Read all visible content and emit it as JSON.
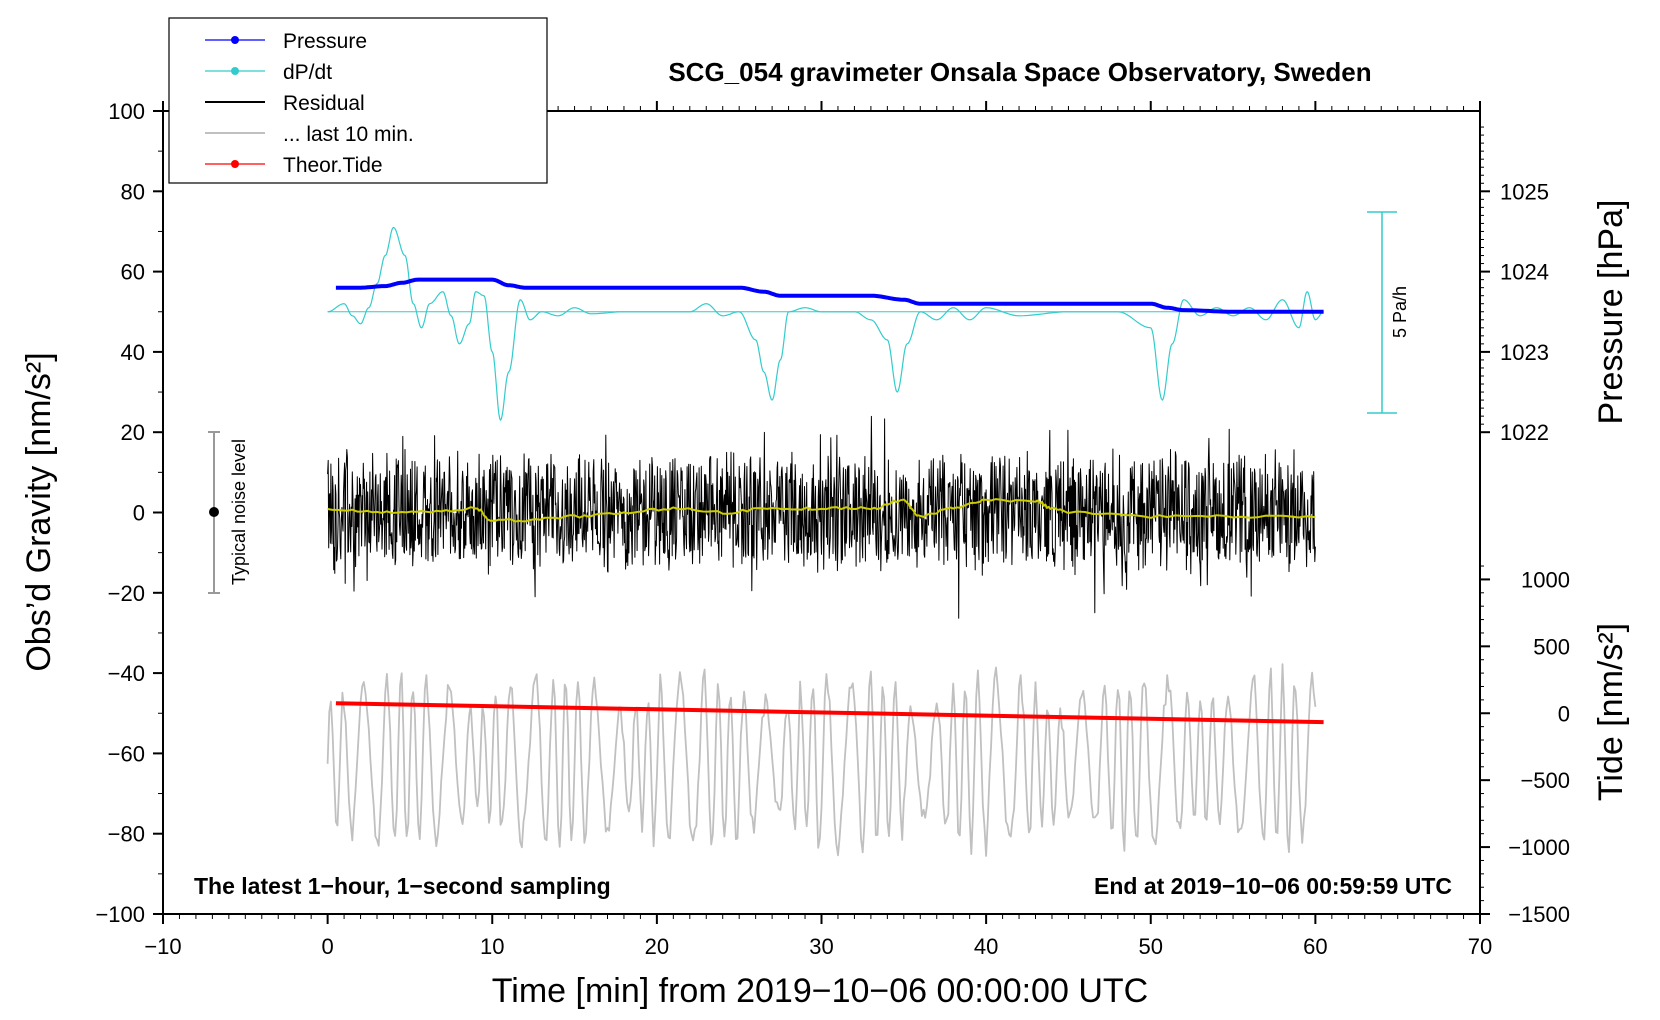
{
  "chart_data": {
    "type": "line",
    "title": "SCG_054 gravimeter Onsala Space Observatory, Sweden",
    "xlabel": "Time [min] from 2019−10−06 00:00:00 UTC",
    "ylabel": "Obs’d Gravity [nm/s²]",
    "ylabel_right_top": "Pressure [hPa]",
    "ylabel_right_bottom": "Tide [nm/s²]",
    "xlim": [
      -10,
      70
    ],
    "ylim": [
      -100,
      100
    ],
    "x_ticks": [
      "−10",
      "0",
      "10",
      "20",
      "30",
      "40",
      "50",
      "60",
      "70"
    ],
    "x_tick_values": [
      -10,
      0,
      10,
      20,
      30,
      40,
      50,
      60,
      70
    ],
    "y_ticks": [
      "100",
      "80",
      "60",
      "40",
      "20",
      "0",
      "−20",
      "−40",
      "−60",
      "−80",
      "−100"
    ],
    "y_tick_values": [
      100,
      80,
      60,
      40,
      20,
      0,
      -20,
      -40,
      -60,
      -80,
      -100
    ],
    "pressure_axis": {
      "ticks": [
        "1025",
        "1024",
        "1023",
        "1022"
      ],
      "tick_values": [
        1025,
        1024,
        1023,
        1022
      ],
      "note": "1 hPa = 20 nm/s² on left axis; 1022 hPa at left 20"
    },
    "tide_axis": {
      "ticks": [
        "1000",
        "500",
        "0",
        "−500",
        "−1000",
        "−1500"
      ],
      "tick_values": [
        1000,
        500,
        0,
        -500,
        -1000,
        -1500
      ],
      "note": "0 nm/s² at left −50; 500 nm/s² per 16.67 left units"
    },
    "legend": [
      {
        "label": "Pressure",
        "color": "#0000ff",
        "marker": "dot"
      },
      {
        "label": "dP/dt",
        "color": "#33cccc",
        "marker": "dot"
      },
      {
        "label": "Residual",
        "color": "#000000",
        "marker": "none"
      },
      {
        "label": "... last 10 min.",
        "color": "#c0c0c0",
        "marker": "none"
      },
      {
        "label": "Theor.Tide",
        "color": "#ff0000",
        "marker": "dot"
      }
    ],
    "series": [
      {
        "name": "Pressure",
        "color": "#0000ff",
        "x": [
          0.5,
          2,
          3.5,
          4.5,
          5.5,
          7,
          9,
          10,
          11,
          12,
          20,
          25,
          26.5,
          27.5,
          33,
          35,
          36,
          40,
          50,
          51,
          52,
          55,
          60.5
        ],
        "y": [
          56,
          56,
          56.4,
          57.2,
          58,
          58,
          58,
          58,
          56.6,
          56,
          56,
          56,
          55,
          54,
          54,
          53,
          52,
          52,
          52,
          51,
          50.4,
          50,
          50
        ]
      },
      {
        "name": "dP/dt",
        "color": "#33cccc",
        "baseline": 50,
        "x": [
          0,
          1,
          1.5,
          2,
          2.5,
          3,
          3.5,
          4,
          4.7,
          5.2,
          5.7,
          6.2,
          7,
          7.5,
          8,
          8.6,
          9,
          9.5,
          10,
          10.5,
          11,
          11.7,
          12.3,
          13,
          14,
          15,
          16,
          18,
          20,
          22,
          23,
          24,
          25,
          26,
          26.5,
          27,
          27.5,
          28,
          29,
          30,
          32,
          33,
          34,
          34.6,
          35.2,
          36,
          37,
          38,
          39,
          40,
          42,
          45,
          48,
          50,
          50.7,
          51.3,
          52,
          53,
          54,
          55,
          56,
          57,
          58,
          59,
          59.5,
          60,
          60.5
        ],
        "y": [
          50,
          52,
          49,
          47,
          51,
          57,
          64,
          71,
          64,
          52,
          46,
          52,
          55,
          49,
          42,
          47,
          55,
          54,
          40,
          23,
          35,
          53,
          48,
          50,
          49,
          51,
          49.5,
          50,
          50,
          50,
          52,
          49,
          50,
          43,
          35,
          28,
          38,
          50,
          51,
          50,
          50,
          48,
          43,
          30,
          42,
          50,
          48,
          51,
          48,
          51,
          49,
          50,
          50,
          46,
          28,
          42,
          53,
          49,
          51,
          49,
          51,
          48,
          53,
          46,
          55,
          48,
          50
        ]
      },
      {
        "name": "Residual",
        "color": "#000000",
        "x_range": [
          0,
          60
        ],
        "y_range": [
          -34,
          26
        ],
        "note": "1-second sampled noise, typical amplitude ±15 nm/s²"
      },
      {
        "name": "Residual smoothed",
        "color": "#cccc00",
        "x": [
          0,
          3,
          6,
          9,
          10,
          12,
          15,
          18,
          21,
          24,
          27,
          30,
          33,
          35,
          36,
          38,
          40,
          43,
          44,
          45,
          50,
          55,
          60
        ],
        "y": [
          1,
          0,
          0,
          1,
          -2,
          -2,
          -1,
          0,
          1,
          0,
          1,
          1,
          1,
          3,
          -1,
          1,
          3,
          3,
          1,
          0,
          -1,
          -1,
          -1
        ]
      },
      {
        "name": "... last 10 min.",
        "color": "#c0c0c0",
        "x_range": [
          0,
          60
        ],
        "y_range": [
          -95,
          -34
        ],
        "note": "oscillation centred near −62 nm/s²"
      },
      {
        "name": "Theor.Tide",
        "color": "#ff0000",
        "x": [
          0.5,
          60.5
        ],
        "y": [
          -47.5,
          -52.2
        ]
      }
    ],
    "scale_bar": {
      "label": "5 Pa/h",
      "color": "#33cccc",
      "from": 25,
      "to": 75
    },
    "noise_marker": {
      "label": "Typical noise level",
      "center": 0,
      "from": -20,
      "to": 20
    },
    "annotation_left": "The latest 1−hour, 1−second sampling",
    "annotation_right": "End at 2019−10−06 00:59:59 UTC"
  }
}
